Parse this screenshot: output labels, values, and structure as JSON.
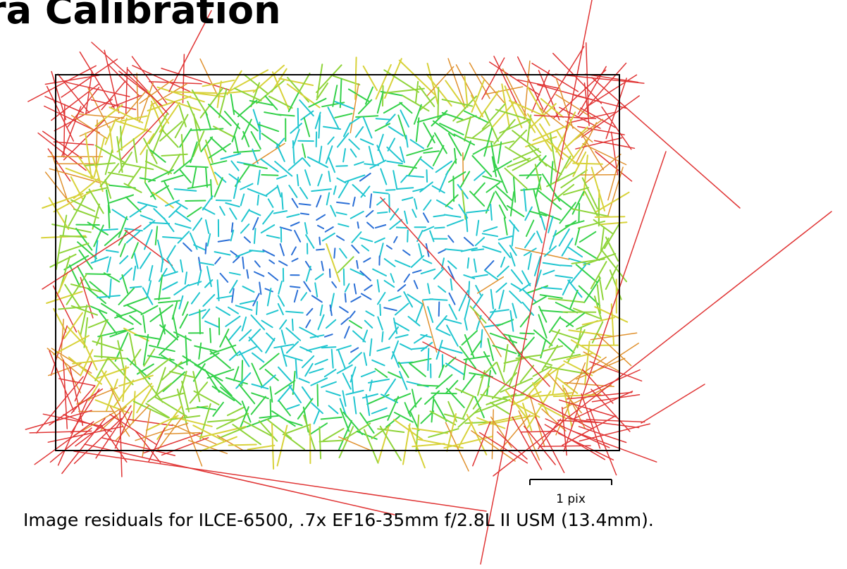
{
  "title": "ra Calibration",
  "plot": {
    "frame_color": "#000000",
    "color_scale": [
      "#2b6fd6",
      "#21c6d0",
      "#34d14a",
      "#8fd43a",
      "#d8d23a",
      "#e0912e",
      "#e03535"
    ],
    "scale_bar_label": "1 pix"
  },
  "caption": "Image residuals for ILCE-6500, .7x EF16-35mm f/2.8L II USM (13.4mm)."
}
